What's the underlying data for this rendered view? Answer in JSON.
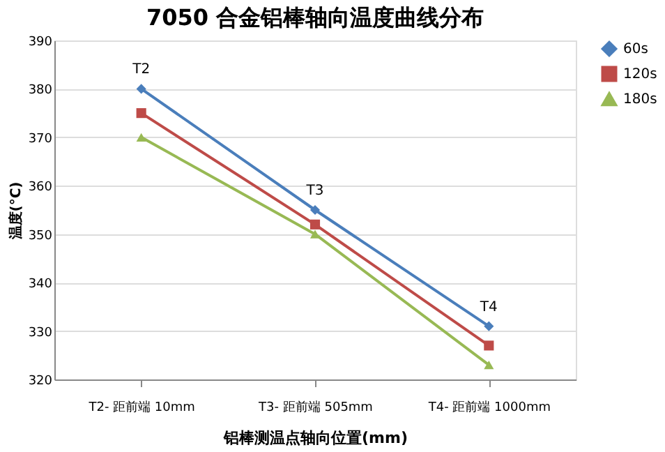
{
  "chart_data": {
    "type": "line",
    "title": "7050 合金铝棒轴向温度曲线分布",
    "xlabel": "铝棒测温点轴向位置(mm)",
    "ylabel": "温度(°C)",
    "categories": [
      "T2- 距前端 10mm",
      "T3- 距前端 505mm",
      "T4- 距前端 1000mm"
    ],
    "series": [
      {
        "name": "60s",
        "color": "#4a7ebb",
        "marker": "diamond",
        "values": [
          380,
          355,
          331
        ]
      },
      {
        "name": "120s",
        "color": "#be4b48",
        "marker": "square",
        "values": [
          375,
          352,
          327
        ]
      },
      {
        "name": "180s",
        "color": "#98b954",
        "marker": "triangle",
        "values": [
          370,
          350,
          323
        ]
      }
    ],
    "annotations": [
      {
        "text": "T2",
        "x": "T2- 距前端 10mm",
        "y": 380
      },
      {
        "text": "T3",
        "x": "T3- 距前端 505mm",
        "y": 355
      },
      {
        "text": "T4",
        "x": "T4- 距前端 1000mm",
        "y": 331
      }
    ],
    "ylim": [
      320,
      390
    ],
    "yticks": [
      320,
      330,
      340,
      350,
      360,
      370,
      380,
      390
    ],
    "grid": "y",
    "legend": "right",
    "line_style": "solid"
  }
}
